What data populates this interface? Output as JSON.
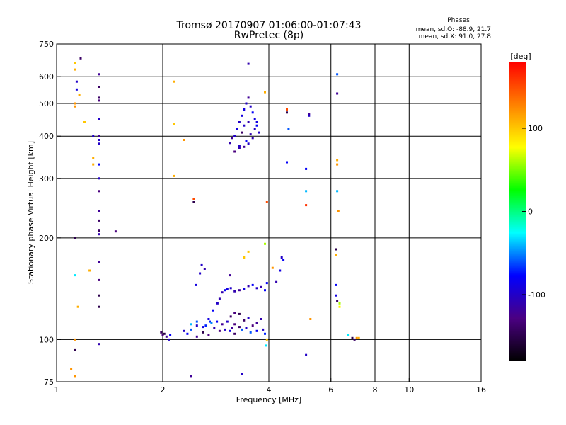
{
  "chart_data": {
    "type": "scatter",
    "title": "Tromsø 20170907 01:06:00-01:07:43",
    "subtitle": "RwPretec (8p)",
    "phases": {
      "heading": "Phases",
      "line_o": "mean, sd,O: -88.9, 21.7",
      "line_x": "mean, sd,X:  91.0, 27.8"
    },
    "xlabel": "Frequency [MHz]",
    "ylabel": "Stationary phase Virtual Height [km]",
    "x_scale": "log",
    "y_scale": "log",
    "xlim": [
      1,
      16
    ],
    "ylim": [
      75,
      750
    ],
    "x_ticks": [
      1,
      2,
      4,
      6,
      8,
      10,
      16
    ],
    "x_tick_labels": [
      "1",
      "2",
      "4",
      "6",
      "8",
      "10",
      "16"
    ],
    "x_grid": [
      2,
      4,
      6,
      8,
      10
    ],
    "y_ticks": [
      75,
      100,
      200,
      300,
      400,
      500,
      600,
      750
    ],
    "y_tick_labels": [
      "75",
      "100",
      "200",
      "300",
      "400",
      "500",
      "600",
      "750"
    ],
    "y_grid": [
      100,
      200,
      300,
      400,
      500,
      600
    ],
    "grid": true,
    "colorbar": {
      "label": "[deg]",
      "min": -180,
      "max": 180,
      "ticks": [
        100,
        0,
        -100
      ],
      "tick_labels": [
        "100",
        "0",
        "-100"
      ],
      "stops": [
        "#000000",
        "#4b0082",
        "#0000ff",
        "#00ffff",
        "#00ff00",
        "#ffff00",
        "#ff8000",
        "#ff0000"
      ]
    },
    "series": [
      {
        "points": [
          [
            1.13,
            660,
            100
          ],
          [
            1.13,
            630,
            110
          ],
          [
            1.13,
            500,
            120
          ],
          [
            1.13,
            490,
            120
          ],
          [
            1.14,
            580,
            -100
          ],
          [
            1.14,
            550,
            -90
          ],
          [
            1.16,
            530,
            110
          ],
          [
            1.13,
            200,
            -150
          ],
          [
            1.13,
            155,
            -30
          ],
          [
            1.13,
            100,
            120
          ],
          [
            1.13,
            93,
            -150
          ],
          [
            1.15,
            125,
            110
          ],
          [
            1.1,
            82,
            120
          ],
          [
            1.13,
            78,
            120
          ],
          [
            1.17,
            680,
            -140
          ],
          [
            1.2,
            440,
            100
          ],
          [
            1.32,
            610,
            -120
          ],
          [
            1.32,
            560,
            -140
          ],
          [
            1.32,
            520,
            -140
          ],
          [
            1.32,
            510,
            -130
          ],
          [
            1.32,
            450,
            -100
          ],
          [
            1.32,
            400,
            -120
          ],
          [
            1.32,
            390,
            -100
          ],
          [
            1.32,
            380,
            -100
          ],
          [
            1.32,
            330,
            -80
          ],
          [
            1.32,
            300,
            -100
          ],
          [
            1.32,
            275,
            -130
          ],
          [
            1.32,
            240,
            -120
          ],
          [
            1.32,
            225,
            -140
          ],
          [
            1.32,
            210,
            -140
          ],
          [
            1.32,
            205,
            -110
          ],
          [
            1.32,
            170,
            -120
          ],
          [
            1.32,
            150,
            -130
          ],
          [
            1.32,
            135,
            -150
          ],
          [
            1.32,
            125,
            -150
          ],
          [
            1.32,
            97,
            -110
          ],
          [
            1.24,
            160,
            110
          ],
          [
            1.27,
            345,
            110
          ],
          [
            1.27,
            330,
            110
          ],
          [
            1.27,
            400,
            -100
          ],
          [
            1.47,
            209,
            -130
          ],
          [
            1.98,
            105,
            -140
          ],
          [
            2.0,
            103,
            -130
          ],
          [
            2.02,
            104,
            -150
          ],
          [
            2.05,
            102,
            -120
          ],
          [
            2.08,
            100,
            -100
          ],
          [
            2.1,
            103,
            -80
          ],
          [
            2.15,
            435,
            100
          ],
          [
            2.15,
            580,
            110
          ],
          [
            2.15,
            305,
            110
          ],
          [
            2.3,
            390,
            120
          ],
          [
            2.45,
            260,
            150
          ],
          [
            2.45,
            255,
            -150
          ],
          [
            2.4,
            78,
            -120
          ],
          [
            2.5,
            110,
            -100
          ],
          [
            2.58,
            166,
            -100
          ],
          [
            2.63,
            162,
            -110
          ],
          [
            2.55,
            157,
            -100
          ],
          [
            2.48,
            145,
            -90
          ],
          [
            2.7,
            115,
            -90
          ],
          [
            2.72,
            113,
            -70
          ],
          [
            2.78,
            122,
            -80
          ],
          [
            2.86,
            128,
            -100
          ],
          [
            2.9,
            132,
            -110
          ],
          [
            2.95,
            138,
            -110
          ],
          [
            3.0,
            140,
            -80
          ],
          [
            3.05,
            141,
            -90
          ],
          [
            3.12,
            142,
            -100
          ],
          [
            3.2,
            139,
            -110
          ],
          [
            3.3,
            140,
            -120
          ],
          [
            3.4,
            141,
            -90
          ],
          [
            3.5,
            144,
            -110
          ],
          [
            3.6,
            145,
            -80
          ],
          [
            3.7,
            142,
            -100
          ],
          [
            3.8,
            143,
            -110
          ],
          [
            3.9,
            140,
            -80
          ],
          [
            3.1,
            155,
            -120
          ],
          [
            3.12,
            117,
            -140
          ],
          [
            3.2,
            120,
            -130
          ],
          [
            3.3,
            119,
            -150
          ],
          [
            3.4,
            114,
            -140
          ],
          [
            3.5,
            116,
            -100
          ],
          [
            3.6,
            110,
            -130
          ],
          [
            3.7,
            112,
            -120
          ],
          [
            3.8,
            115,
            -110
          ],
          [
            3.3,
            109,
            -140
          ],
          [
            3.2,
            111,
            -130
          ],
          [
            3.15,
            108,
            -120
          ],
          [
            3.0,
            107,
            -100
          ],
          [
            2.9,
            106,
            -130
          ],
          [
            2.8,
            108,
            -110
          ],
          [
            2.7,
            103,
            -130
          ],
          [
            2.6,
            105,
            -150
          ],
          [
            2.5,
            102,
            -120
          ],
          [
            2.4,
            107,
            -60
          ],
          [
            2.35,
            104,
            -80
          ],
          [
            2.3,
            106,
            -100
          ],
          [
            2.4,
            111,
            -40
          ],
          [
            2.5,
            113,
            -60
          ],
          [
            2.6,
            109,
            -90
          ],
          [
            2.65,
            110,
            -70
          ],
          [
            2.75,
            112,
            -50
          ],
          [
            2.85,
            113,
            -80
          ],
          [
            2.95,
            111,
            -120
          ],
          [
            3.05,
            113,
            -100
          ],
          [
            3.1,
            106,
            -90
          ],
          [
            3.2,
            104,
            -140
          ],
          [
            3.35,
            107,
            -60
          ],
          [
            3.45,
            108,
            -100
          ],
          [
            3.55,
            105,
            -60
          ],
          [
            3.7,
            106,
            -80
          ],
          [
            3.85,
            107,
            -100
          ],
          [
            3.9,
            104,
            -70
          ],
          [
            3.95,
            147,
            -80
          ],
          [
            3.4,
            175,
            100
          ],
          [
            3.5,
            182,
            100
          ],
          [
            3.9,
            192,
            60
          ],
          [
            3.93,
            96,
            -30
          ],
          [
            3.95,
            100,
            100
          ],
          [
            3.35,
            79,
            -100
          ],
          [
            3.1,
            382,
            -110
          ],
          [
            3.15,
            395,
            -120
          ],
          [
            3.2,
            400,
            -100
          ],
          [
            3.25,
            420,
            -90
          ],
          [
            3.3,
            440,
            -100
          ],
          [
            3.35,
            460,
            -90
          ],
          [
            3.4,
            480,
            -90
          ],
          [
            3.45,
            500,
            -100
          ],
          [
            3.5,
            520,
            -120
          ],
          [
            3.55,
            490,
            -100
          ],
          [
            3.6,
            470,
            -80
          ],
          [
            3.65,
            450,
            -90
          ],
          [
            3.7,
            430,
            -80
          ],
          [
            3.75,
            410,
            -100
          ],
          [
            3.6,
            395,
            -110
          ],
          [
            3.5,
            380,
            -100
          ],
          [
            3.4,
            372,
            -120
          ],
          [
            3.3,
            368,
            -110
          ],
          [
            3.2,
            360,
            -130
          ],
          [
            3.3,
            375,
            -100
          ],
          [
            3.45,
            388,
            -80
          ],
          [
            3.55,
            405,
            -110
          ],
          [
            3.65,
            420,
            -100
          ],
          [
            3.7,
            440,
            -90
          ],
          [
            3.5,
            440,
            -110
          ],
          [
            3.4,
            430,
            -100
          ],
          [
            3.35,
            410,
            -140
          ],
          [
            3.5,
            655,
            -110
          ],
          [
            3.9,
            540,
            110
          ],
          [
            3.95,
            255,
            150
          ],
          [
            4.5,
            470,
            -150
          ],
          [
            4.5,
            480,
            150
          ],
          [
            4.5,
            335,
            -80
          ],
          [
            4.55,
            420,
            -60
          ],
          [
            4.35,
            175,
            -100
          ],
          [
            4.3,
            160,
            -90
          ],
          [
            4.4,
            172,
            -80
          ],
          [
            4.2,
            148,
            -110
          ],
          [
            4.1,
            163,
            120
          ],
          [
            5.2,
            465,
            -120
          ],
          [
            5.2,
            460,
            -100
          ],
          [
            5.1,
            320,
            -80
          ],
          [
            5.1,
            275,
            -40
          ],
          [
            5.1,
            250,
            160
          ],
          [
            5.25,
            115,
            120
          ],
          [
            5.1,
            90,
            -100
          ],
          [
            6.25,
            610,
            -60
          ],
          [
            6.25,
            535,
            -120
          ],
          [
            6.25,
            340,
            110
          ],
          [
            6.25,
            330,
            120
          ],
          [
            6.25,
            275,
            -40
          ],
          [
            6.3,
            240,
            120
          ],
          [
            6.2,
            185,
            -150
          ],
          [
            6.2,
            178,
            110
          ],
          [
            6.2,
            145,
            -80
          ],
          [
            6.2,
            135,
            -90
          ],
          [
            6.25,
            130,
            -140
          ],
          [
            6.35,
            128,
            60
          ],
          [
            6.35,
            125,
            80
          ],
          [
            6.7,
            103,
            -30
          ],
          [
            6.9,
            101,
            -150
          ],
          [
            7.0,
            100,
            -140
          ],
          [
            7.1,
            101,
            120
          ],
          [
            7.2,
            101,
            110
          ]
        ]
      }
    ]
  }
}
